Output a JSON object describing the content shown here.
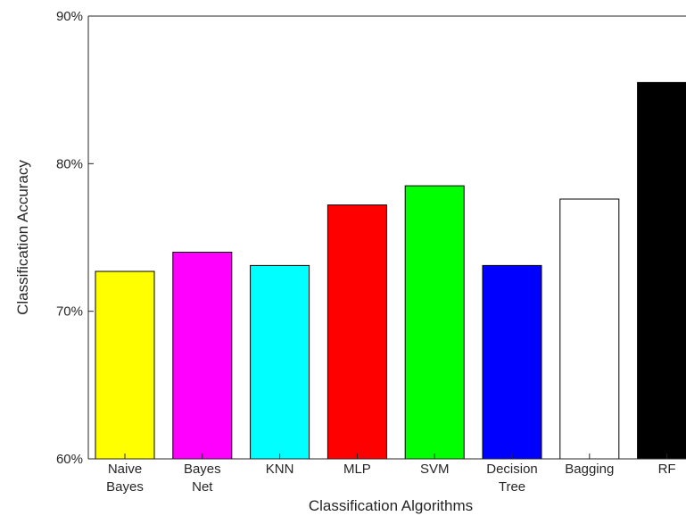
{
  "chart_data": {
    "type": "bar",
    "categories": [
      [
        "Naive",
        "Bayes"
      ],
      [
        "Bayes",
        "Net"
      ],
      [
        "KNN"
      ],
      [
        "MLP"
      ],
      [
        "SVM"
      ],
      [
        "Decision",
        "Tree"
      ],
      [
        "Bagging"
      ],
      [
        "RF"
      ]
    ],
    "values": [
      72.7,
      74.0,
      73.1,
      77.2,
      78.5,
      73.1,
      77.6,
      85.5
    ],
    "bar_colors": [
      "#ffff00",
      "#ff00ff",
      "#00ffff",
      "#ff0000",
      "#00ff00",
      "#0000ff",
      "#ffffff",
      "#000000"
    ],
    "xlabel": "Classification Algorithms",
    "ylabel": "Classification Accuracy",
    "ylim": [
      60,
      90
    ],
    "yticks": [
      60,
      70,
      80,
      90
    ],
    "ytick_labels": [
      "60%",
      "70%",
      "80%",
      "90%"
    ],
    "grid": false
  }
}
